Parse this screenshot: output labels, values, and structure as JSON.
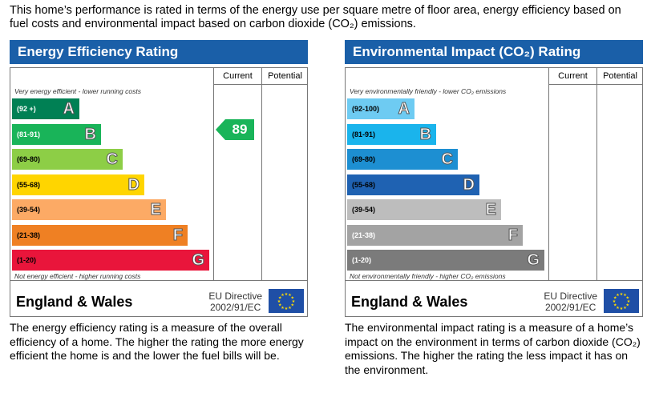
{
  "intro": "This home’s performance is rated in terms of the energy use per square metre of floor area, energy efficiency based on fuel costs and environmental impact based on carbon dioxide (CO₂) emissions.",
  "panels": {
    "ee": {
      "title": "Energy Efficiency Rating",
      "col_current": "Current",
      "col_potential": "Potential",
      "top_note": "Very energy efficient - lower running costs",
      "bottom_note": "Not energy efficient - higher running costs",
      "region": "England & Wales",
      "directive_line1": "EU Directive",
      "directive_line2": "2002/91/EC",
      "bands": [
        {
          "range": "(92 +)",
          "letter": "A",
          "color": "#008054",
          "text_color": "#ffffff"
        },
        {
          "range": "(81-91)",
          "letter": "B",
          "color": "#19b459",
          "text_color": "#ffffff"
        },
        {
          "range": "(69-80)",
          "letter": "C",
          "color": "#8dce46",
          "text_color": "#000000"
        },
        {
          "range": "(55-68)",
          "letter": "D",
          "color": "#ffd500",
          "text_color": "#000000"
        },
        {
          "range": "(39-54)",
          "letter": "E",
          "color": "#fcaa65",
          "text_color": "#000000"
        },
        {
          "range": "(21-38)",
          "letter": "F",
          "color": "#ef8023",
          "text_color": "#000000"
        },
        {
          "range": "(1-20)",
          "letter": "G",
          "color": "#e9153b",
          "text_color": "#000000"
        }
      ],
      "current": {
        "value": "89",
        "band_index": 1,
        "color": "#19b459"
      },
      "description": "The energy efficiency rating is a measure of the overall efficiency of a home. The higher the rating the more energy efficient the home is and the lower the fuel bills will be."
    },
    "ei": {
      "title": "Environmental Impact (CO₂) Rating",
      "col_current": "Current",
      "col_potential": "Potential",
      "top_note": "Very environmentally friendly - lower CO₂ emissions",
      "bottom_note": "Not environmentally friendly - higher CO₂ emissions",
      "region": "England & Wales",
      "directive_line1": "EU Directive",
      "directive_line2": "2002/91/EC",
      "bands": [
        {
          "range": "(92-100)",
          "letter": "A",
          "color": "#6ecbf2",
          "text_color": "#000000"
        },
        {
          "range": "(81-91)",
          "letter": "B",
          "color": "#1ab4ec",
          "text_color": "#000000"
        },
        {
          "range": "(69-80)",
          "letter": "C",
          "color": "#1d8fd2",
          "text_color": "#000000"
        },
        {
          "range": "(55-68)",
          "letter": "D",
          "color": "#1f62b2",
          "text_color": "#000000"
        },
        {
          "range": "(39-54)",
          "letter": "E",
          "color": "#bdbdbd",
          "text_color": "#000000"
        },
        {
          "range": "(21-38)",
          "letter": "F",
          "color": "#a3a3a3",
          "text_color": "#ffffff"
        },
        {
          "range": "(1-20)",
          "letter": "G",
          "color": "#7b7b7b",
          "text_color": "#ffffff"
        }
      ],
      "description": "The environmental impact rating is a measure of a home’s impact on the environment in terms of carbon dioxide (CO₂) emissions. The higher the rating the less impact it has on the environment."
    }
  }
}
